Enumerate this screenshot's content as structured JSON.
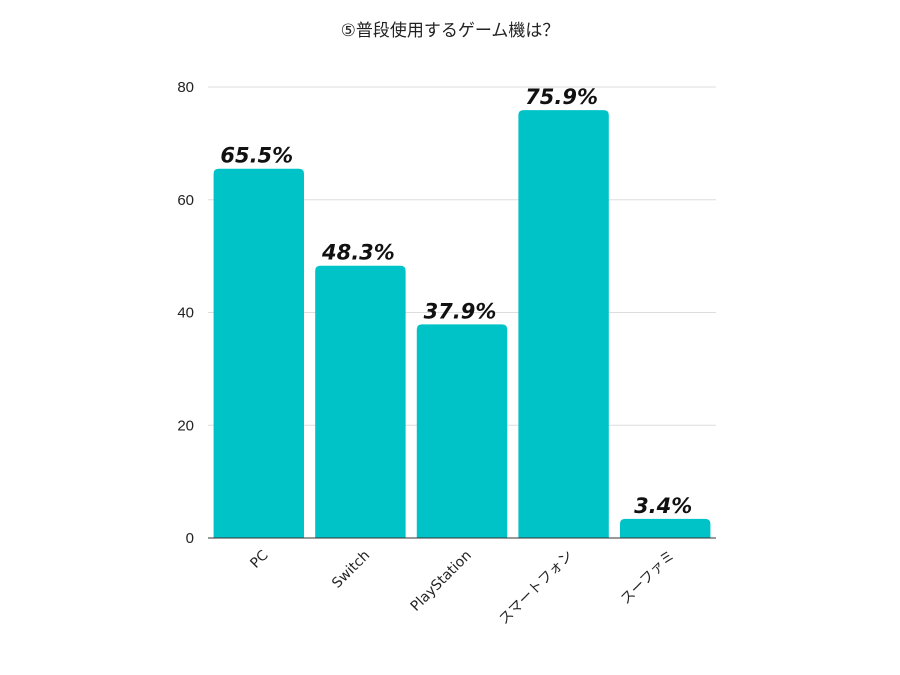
{
  "chart_data": {
    "type": "bar",
    "title": "⑤普段使用するゲーム機は？",
    "xlabel": "",
    "ylabel": "",
    "categories": [
      "PC",
      "Switch",
      "PlayStation",
      "スマートフォン",
      "スーファミ"
    ],
    "values": [
      65.5,
      48.3,
      37.9,
      75.9,
      3.4
    ],
    "data_labels": [
      "65.5%",
      "48.3%",
      "37.9%",
      "75.9%",
      "3.4%"
    ],
    "ylim": [
      0,
      80
    ],
    "yticks": [
      0,
      20,
      40,
      60,
      80
    ],
    "ytick_labels": [
      "0",
      "20",
      "40",
      "60",
      "80"
    ],
    "grid": true,
    "legend": "none",
    "colors": {
      "bar": "#00C3C8",
      "grid": "#dddddd",
      "axis": "#333333",
      "text": "#222222"
    }
  }
}
